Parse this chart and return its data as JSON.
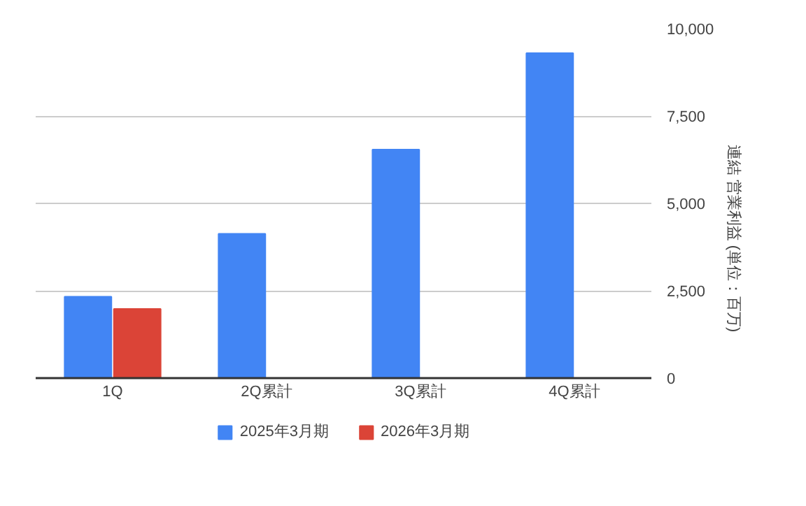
{
  "chart_data": {
    "type": "bar",
    "categories": [
      "1Q",
      "2Q累計",
      "3Q累計",
      "4Q累計"
    ],
    "series": [
      {
        "name": "2025年3月期",
        "color": "#4285f4",
        "values": [
          2330,
          4130,
          6540,
          9300
        ]
      },
      {
        "name": "2026年3月期",
        "color": "#db4437",
        "values": [
          1980,
          null,
          null,
          null
        ]
      }
    ],
    "ylabel": "連結 営業利益 (単位：百万)",
    "ylim": [
      0,
      10000
    ],
    "yticks": [
      {
        "value": 0,
        "label": "0"
      },
      {
        "value": 2500,
        "label": "2,500"
      },
      {
        "value": 5000,
        "label": "5,000"
      },
      {
        "value": 7500,
        "label": "7,500"
      },
      {
        "value": 10000,
        "label": "10,000"
      }
    ],
    "grid": "y",
    "legend": "bottom"
  }
}
